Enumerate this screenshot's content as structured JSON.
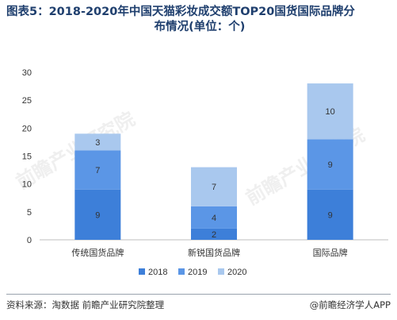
{
  "header": {
    "title_line1": "图表5：2018-2020年中国天猫彩妆成交额TOP20国货国际品牌分",
    "title_line2": "布情况(单位：个)"
  },
  "chart_data": {
    "type": "bar",
    "stacked": true,
    "categories": [
      "传统国货品牌",
      "新锐国货品牌",
      "国际品牌"
    ],
    "series": [
      {
        "name": "2018",
        "values": [
          9,
          2,
          9
        ],
        "color": "#3d7fd9"
      },
      {
        "name": "2019",
        "values": [
          7,
          4,
          9
        ],
        "color": "#5b96e6"
      },
      {
        "name": "2020",
        "values": [
          3,
          7,
          10
        ],
        "color": "#a9c8ee"
      }
    ],
    "ylim": [
      0,
      30
    ],
    "yticks": [
      0,
      5,
      10,
      15,
      20,
      25,
      30
    ],
    "grid": false,
    "legend_position": "bottom",
    "xlabel": "",
    "ylabel": ""
  },
  "footer": {
    "source": "资料来源：淘数据 前瞻产业研究院整理",
    "brand": "@前瞻经济学人APP"
  },
  "watermark_text": "前瞻产业研究院"
}
